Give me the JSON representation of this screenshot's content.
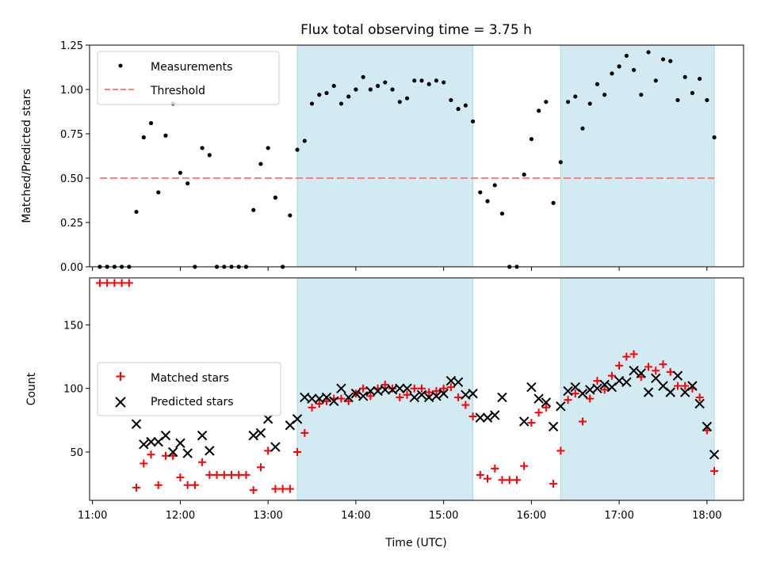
{
  "chart_data": [
    {
      "type": "scatter",
      "title": "Flux total observing time = 3.75 h",
      "xlabel": "",
      "ylabel": "Matched/Predicted stars",
      "ylim": [
        0,
        1.25
      ],
      "yticks": [
        "0.00",
        "0.25",
        "0.50",
        "0.75",
        "1.00",
        "1.25"
      ],
      "xlim": [
        "10:58",
        "18:25"
      ],
      "shaded_intervals": [
        [
          "13:20",
          "15:20"
        ],
        [
          "16:20",
          "18:05"
        ]
      ],
      "legend_position": "top-left",
      "threshold": {
        "name": "Threshold",
        "y": 0.5,
        "x_range": [
          "11:05",
          "18:05"
        ],
        "color": "#ff7f7f"
      },
      "series": [
        {
          "name": "Measurements",
          "color": "#000000",
          "points": [
            [
              "11:05",
              0.0
            ],
            [
              "11:10",
              0.0
            ],
            [
              "11:15",
              0.0
            ],
            [
              "11:20",
              0.0
            ],
            [
              "11:25",
              0.0
            ],
            [
              "11:30",
              0.31
            ],
            [
              "11:35",
              0.73
            ],
            [
              "11:40",
              0.81
            ],
            [
              "11:45",
              0.42
            ],
            [
              "11:50",
              0.74
            ],
            [
              "11:55",
              0.92
            ],
            [
              "12:00",
              0.53
            ],
            [
              "12:05",
              0.47
            ],
            [
              "12:10",
              0.0
            ],
            [
              "12:15",
              0.67
            ],
            [
              "12:20",
              0.63
            ],
            [
              "12:25",
              0.0
            ],
            [
              "12:30",
              0.0
            ],
            [
              "12:35",
              0.0
            ],
            [
              "12:40",
              0.0
            ],
            [
              "12:45",
              0.0
            ],
            [
              "12:50",
              0.32
            ],
            [
              "12:55",
              0.58
            ],
            [
              "13:00",
              0.67
            ],
            [
              "13:05",
              0.39
            ],
            [
              "13:10",
              0.0
            ],
            [
              "13:15",
              0.29
            ],
            [
              "13:20",
              0.66
            ],
            [
              "13:25",
              0.71
            ],
            [
              "13:30",
              0.92
            ],
            [
              "13:35",
              0.97
            ],
            [
              "13:40",
              0.98
            ],
            [
              "13:45",
              1.02
            ],
            [
              "13:50",
              0.92
            ],
            [
              "13:55",
              0.96
            ],
            [
              "14:00",
              1.0
            ],
            [
              "14:05",
              1.07
            ],
            [
              "14:10",
              1.0
            ],
            [
              "14:15",
              1.02
            ],
            [
              "14:20",
              1.04
            ],
            [
              "14:25",
              1.0
            ],
            [
              "14:30",
              0.93
            ],
            [
              "14:35",
              0.95
            ],
            [
              "14:40",
              1.05
            ],
            [
              "14:45",
              1.05
            ],
            [
              "14:50",
              1.03
            ],
            [
              "14:55",
              1.05
            ],
            [
              "15:00",
              1.04
            ],
            [
              "15:05",
              0.94
            ],
            [
              "15:10",
              0.89
            ],
            [
              "15:15",
              0.91
            ],
            [
              "15:20",
              0.82
            ],
            [
              "15:25",
              0.42
            ],
            [
              "15:30",
              0.37
            ],
            [
              "15:35",
              0.46
            ],
            [
              "15:40",
              0.3
            ],
            [
              "15:45",
              0.0
            ],
            [
              "15:50",
              0.0
            ],
            [
              "15:55",
              0.52
            ],
            [
              "16:00",
              0.72
            ],
            [
              "16:05",
              0.88
            ],
            [
              "16:10",
              0.93
            ],
            [
              "16:15",
              0.36
            ],
            [
              "16:20",
              0.59
            ],
            [
              "16:25",
              0.93
            ],
            [
              "16:30",
              0.96
            ],
            [
              "16:35",
              0.78
            ],
            [
              "16:40",
              0.92
            ],
            [
              "16:45",
              1.03
            ],
            [
              "16:50",
              0.97
            ],
            [
              "16:55",
              1.09
            ],
            [
              "17:00",
              1.13
            ],
            [
              "17:05",
              1.19
            ],
            [
              "17:10",
              1.11
            ],
            [
              "17:15",
              0.97
            ],
            [
              "17:20",
              1.21
            ],
            [
              "17:25",
              1.05
            ],
            [
              "17:30",
              1.17
            ],
            [
              "17:35",
              1.16
            ],
            [
              "17:40",
              0.94
            ],
            [
              "17:45",
              1.07
            ],
            [
              "17:50",
              0.98
            ],
            [
              "17:55",
              1.06
            ],
            [
              "18:00",
              0.94
            ],
            [
              "18:05",
              0.73
            ]
          ]
        }
      ]
    },
    {
      "type": "scatter",
      "title": "",
      "xlabel": "Time (UTC)",
      "ylabel": "Count",
      "ylim": [
        12,
        187
      ],
      "yticks": [
        "50",
        "100",
        "150"
      ],
      "xlim": [
        "10:58",
        "18:25"
      ],
      "xticks": [
        "11:00",
        "12:00",
        "13:00",
        "14:00",
        "15:00",
        "16:00",
        "17:00",
        "18:00"
      ],
      "shaded_intervals": [
        [
          "13:20",
          "15:20"
        ],
        [
          "16:20",
          "18:05"
        ]
      ],
      "legend_position": "center-left",
      "series": [
        {
          "name": "Matched stars",
          "color": "#ff0000",
          "marker": "+",
          "points": [
            [
              "11:05",
              183
            ],
            [
              "11:10",
              183
            ],
            [
              "11:15",
              183
            ],
            [
              "11:20",
              183
            ],
            [
              "11:25",
              183
            ],
            [
              "11:30",
              22
            ],
            [
              "11:35",
              41
            ],
            [
              "11:40",
              48
            ],
            [
              "11:45",
              24
            ],
            [
              "11:50",
              47
            ],
            [
              "11:55",
              47
            ],
            [
              "12:00",
              30
            ],
            [
              "12:05",
              24
            ],
            [
              "12:10",
              24
            ],
            [
              "12:15",
              42
            ],
            [
              "12:20",
              32
            ],
            [
              "12:25",
              32
            ],
            [
              "12:30",
              32
            ],
            [
              "12:35",
              32
            ],
            [
              "12:40",
              32
            ],
            [
              "12:45",
              32
            ],
            [
              "12:50",
              20
            ],
            [
              "12:55",
              38
            ],
            [
              "13:00",
              51
            ],
            [
              "13:05",
              21
            ],
            [
              "13:10",
              21
            ],
            [
              "13:15",
              21
            ],
            [
              "13:20",
              50
            ],
            [
              "13:25",
              65
            ],
            [
              "13:30",
              85
            ],
            [
              "13:35",
              88
            ],
            [
              "13:40",
              90
            ],
            [
              "13:45",
              92
            ],
            [
              "13:50",
              92
            ],
            [
              "13:55",
              90
            ],
            [
              "14:00",
              96
            ],
            [
              "14:05",
              100
            ],
            [
              "14:10",
              94
            ],
            [
              "14:15",
              100
            ],
            [
              "14:20",
              103
            ],
            [
              "14:25",
              100
            ],
            [
              "14:30",
              93
            ],
            [
              "14:35",
              95
            ],
            [
              "14:40",
              100
            ],
            [
              "14:45",
              100
            ],
            [
              "14:50",
              97
            ],
            [
              "14:55",
              98
            ],
            [
              "15:00",
              100
            ],
            [
              "15:05",
              101
            ],
            [
              "15:10",
              93
            ],
            [
              "15:15",
              87
            ],
            [
              "15:20",
              78
            ],
            [
              "15:25",
              32
            ],
            [
              "15:30",
              29
            ],
            [
              "15:35",
              37
            ],
            [
              "15:40",
              28
            ],
            [
              "15:45",
              28
            ],
            [
              "15:50",
              28
            ],
            [
              "15:55",
              39
            ],
            [
              "16:00",
              73
            ],
            [
              "16:05",
              81
            ],
            [
              "16:10",
              85
            ],
            [
              "16:15",
              25
            ],
            [
              "16:20",
              51
            ],
            [
              "16:25",
              91
            ],
            [
              "16:30",
              96
            ],
            [
              "16:35",
              74
            ],
            [
              "16:40",
              92
            ],
            [
              "16:45",
              106
            ],
            [
              "16:50",
              99
            ],
            [
              "16:55",
              110
            ],
            [
              "17:00",
              118
            ],
            [
              "17:05",
              125
            ],
            [
              "17:10",
              127
            ],
            [
              "17:15",
              109
            ],
            [
              "17:20",
              117
            ],
            [
              "17:25",
              114
            ],
            [
              "17:30",
              119
            ],
            [
              "17:35",
              113
            ],
            [
              "17:40",
              102
            ],
            [
              "17:45",
              102
            ],
            [
              "17:50",
              100
            ],
            [
              "17:55",
              93
            ],
            [
              "18:00",
              67
            ],
            [
              "18:05",
              35
            ]
          ]
        },
        {
          "name": "Predicted stars",
          "color": "#000000",
          "marker": "x",
          "points": [
            [
              "11:30",
              72
            ],
            [
              "11:35",
              56
            ],
            [
              "11:40",
              58
            ],
            [
              "11:45",
              58
            ],
            [
              "11:50",
              63
            ],
            [
              "11:55",
              50
            ],
            [
              "12:00",
              57
            ],
            [
              "12:05",
              49
            ],
            [
              "12:15",
              63
            ],
            [
              "12:20",
              51
            ],
            [
              "12:50",
              63
            ],
            [
              "12:55",
              65
            ],
            [
              "13:00",
              76
            ],
            [
              "13:05",
              54
            ],
            [
              "13:15",
              71
            ],
            [
              "13:20",
              76
            ],
            [
              "13:25",
              93
            ],
            [
              "13:30",
              92
            ],
            [
              "13:35",
              92
            ],
            [
              "13:40",
              93
            ],
            [
              "13:45",
              90
            ],
            [
              "13:50",
              100
            ],
            [
              "13:55",
              93
            ],
            [
              "14:00",
              96
            ],
            [
              "14:05",
              94
            ],
            [
              "14:10",
              98
            ],
            [
              "14:15",
              98
            ],
            [
              "14:20",
              99
            ],
            [
              "14:25",
              99
            ],
            [
              "14:30",
              100
            ],
            [
              "14:35",
              100
            ],
            [
              "14:40",
              93
            ],
            [
              "14:45",
              95
            ],
            [
              "14:50",
              93
            ],
            [
              "14:55",
              94
            ],
            [
              "15:00",
              96
            ],
            [
              "15:05",
              106
            ],
            [
              "15:10",
              105
            ],
            [
              "15:15",
              95
            ],
            [
              "15:20",
              96
            ],
            [
              "15:25",
              77
            ],
            [
              "15:30",
              77
            ],
            [
              "15:35",
              79
            ],
            [
              "15:40",
              93
            ],
            [
              "15:55",
              74
            ],
            [
              "16:00",
              101
            ],
            [
              "16:05",
              92
            ],
            [
              "16:10",
              89
            ],
            [
              "16:15",
              70
            ],
            [
              "16:20",
              86
            ],
            [
              "16:25",
              98
            ],
            [
              "16:30",
              101
            ],
            [
              "16:35",
              96
            ],
            [
              "16:40",
              99
            ],
            [
              "16:45",
              100
            ],
            [
              "16:50",
              103
            ],
            [
              "16:55",
              101
            ],
            [
              "17:00",
              106
            ],
            [
              "17:05",
              105
            ],
            [
              "17:10",
              114
            ],
            [
              "17:15",
              112
            ],
            [
              "17:20",
              97
            ],
            [
              "17:25",
              108
            ],
            [
              "17:30",
              102
            ],
            [
              "17:35",
              97
            ],
            [
              "17:40",
              110
            ],
            [
              "17:45",
              97
            ],
            [
              "17:50",
              102
            ],
            [
              "17:55",
              88
            ],
            [
              "18:00",
              70
            ],
            [
              "18:05",
              48
            ]
          ]
        }
      ]
    }
  ],
  "colors": {
    "shade": "#add8e6",
    "matched": "#ff0000",
    "predicted": "#000000",
    "measurement": "#000000",
    "threshold": "#ff7f7f"
  }
}
